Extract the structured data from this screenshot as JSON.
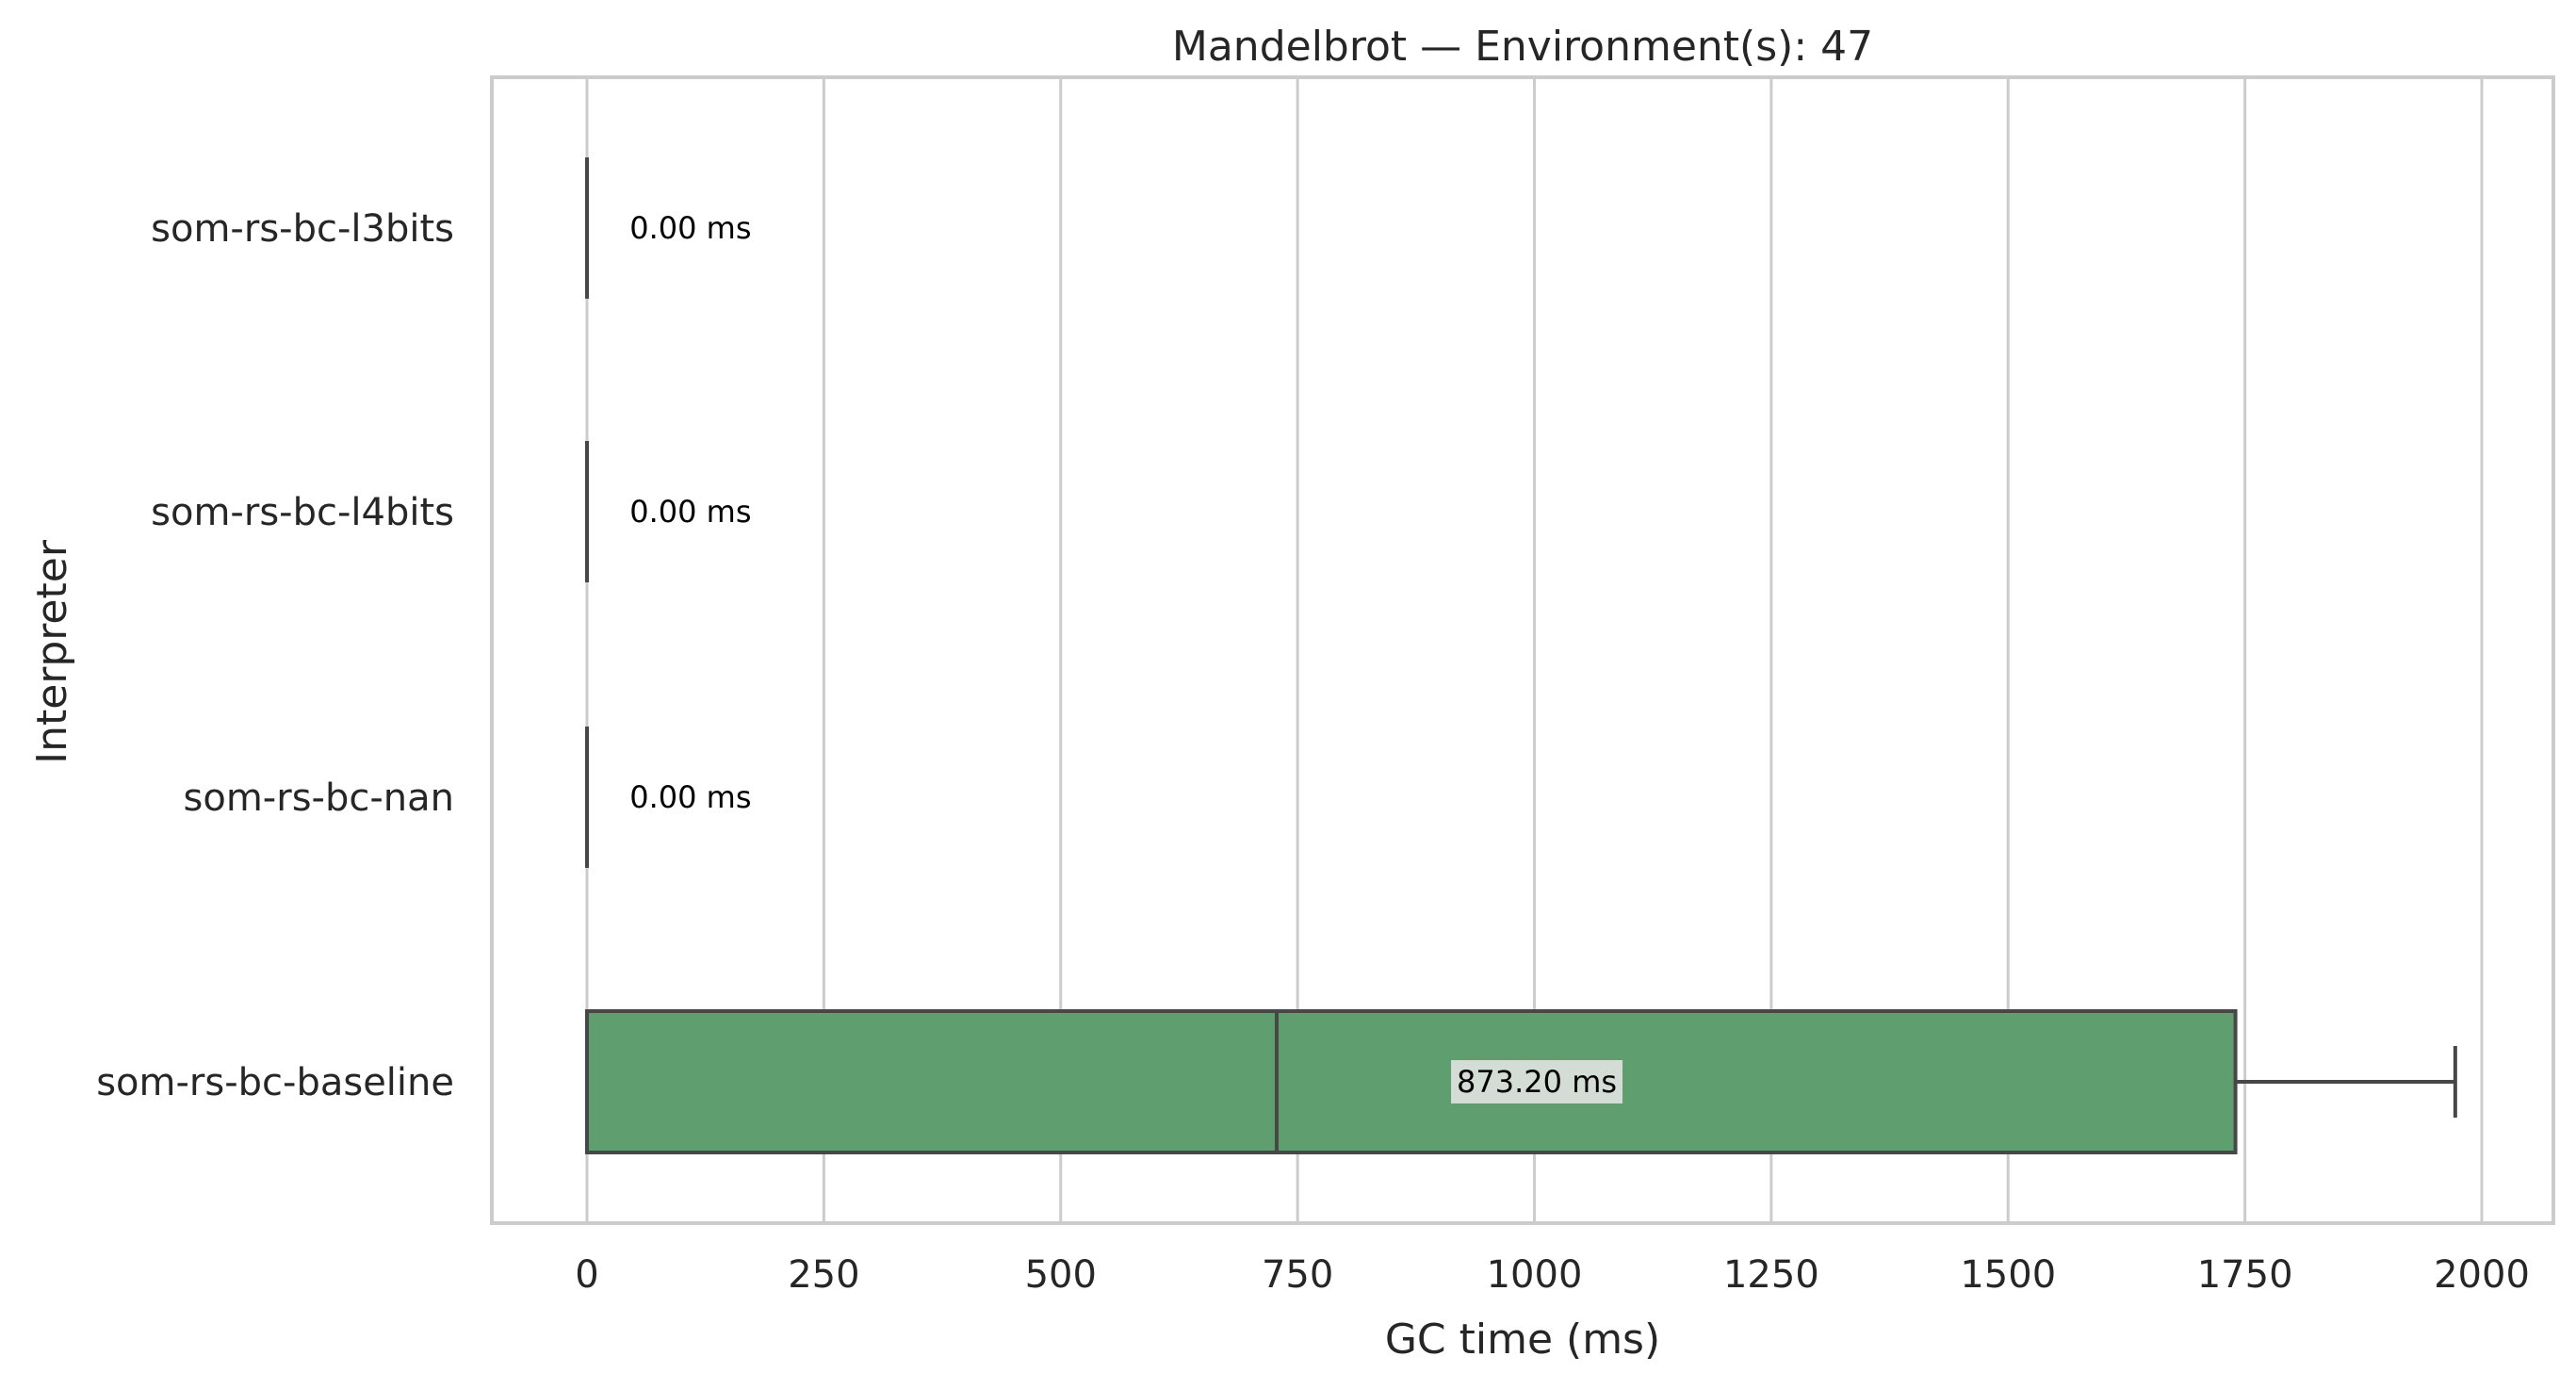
{
  "chart_data": {
    "type": "box",
    "orientation": "horizontal",
    "title": "Mandelbrot — Environment(s): 47",
    "xlabel": "GC time (ms)",
    "ylabel": "Interpreter",
    "xlim": [
      -100,
      2070
    ],
    "xticks": [
      0,
      250,
      500,
      750,
      1000,
      1250,
      1500,
      1750,
      2000
    ],
    "xtick_labels": [
      "0",
      "250",
      "500",
      "750",
      "1000",
      "1250",
      "1500",
      "1750",
      "2000"
    ],
    "grid": "vertical",
    "categories": [
      "som-rs-bc-l3bits",
      "som-rs-bc-l4bits",
      "som-rs-bc-nan",
      "som-rs-bc-baseline"
    ],
    "boxes": [
      {
        "category": "som-rs-bc-l3bits",
        "min": 0,
        "q1": 0,
        "median": 0,
        "q3": 0,
        "max": 0,
        "annotation": "0.00 ms",
        "annotation_x": 45
      },
      {
        "category": "som-rs-bc-l4bits",
        "min": 0,
        "q1": 0,
        "median": 0,
        "q3": 0,
        "max": 0,
        "annotation": "0.00 ms",
        "annotation_x": 45
      },
      {
        "category": "som-rs-bc-nan",
        "min": 0,
        "q1": 0,
        "median": 0,
        "q3": 0,
        "max": 0,
        "annotation": "0.00 ms",
        "annotation_x": 45
      },
      {
        "category": "som-rs-bc-baseline",
        "min": 0,
        "q1": 0,
        "median": 728,
        "q3": 1740,
        "max": 1972,
        "annotation": "873.20 ms",
        "annotation_x": 918
      }
    ],
    "colors": {
      "box_fill": "#5f9e6e",
      "box_edge": "#474747",
      "grid": "#cccccc",
      "frame": "#cccccc",
      "annotation_bg": "#e8e8e8"
    }
  }
}
